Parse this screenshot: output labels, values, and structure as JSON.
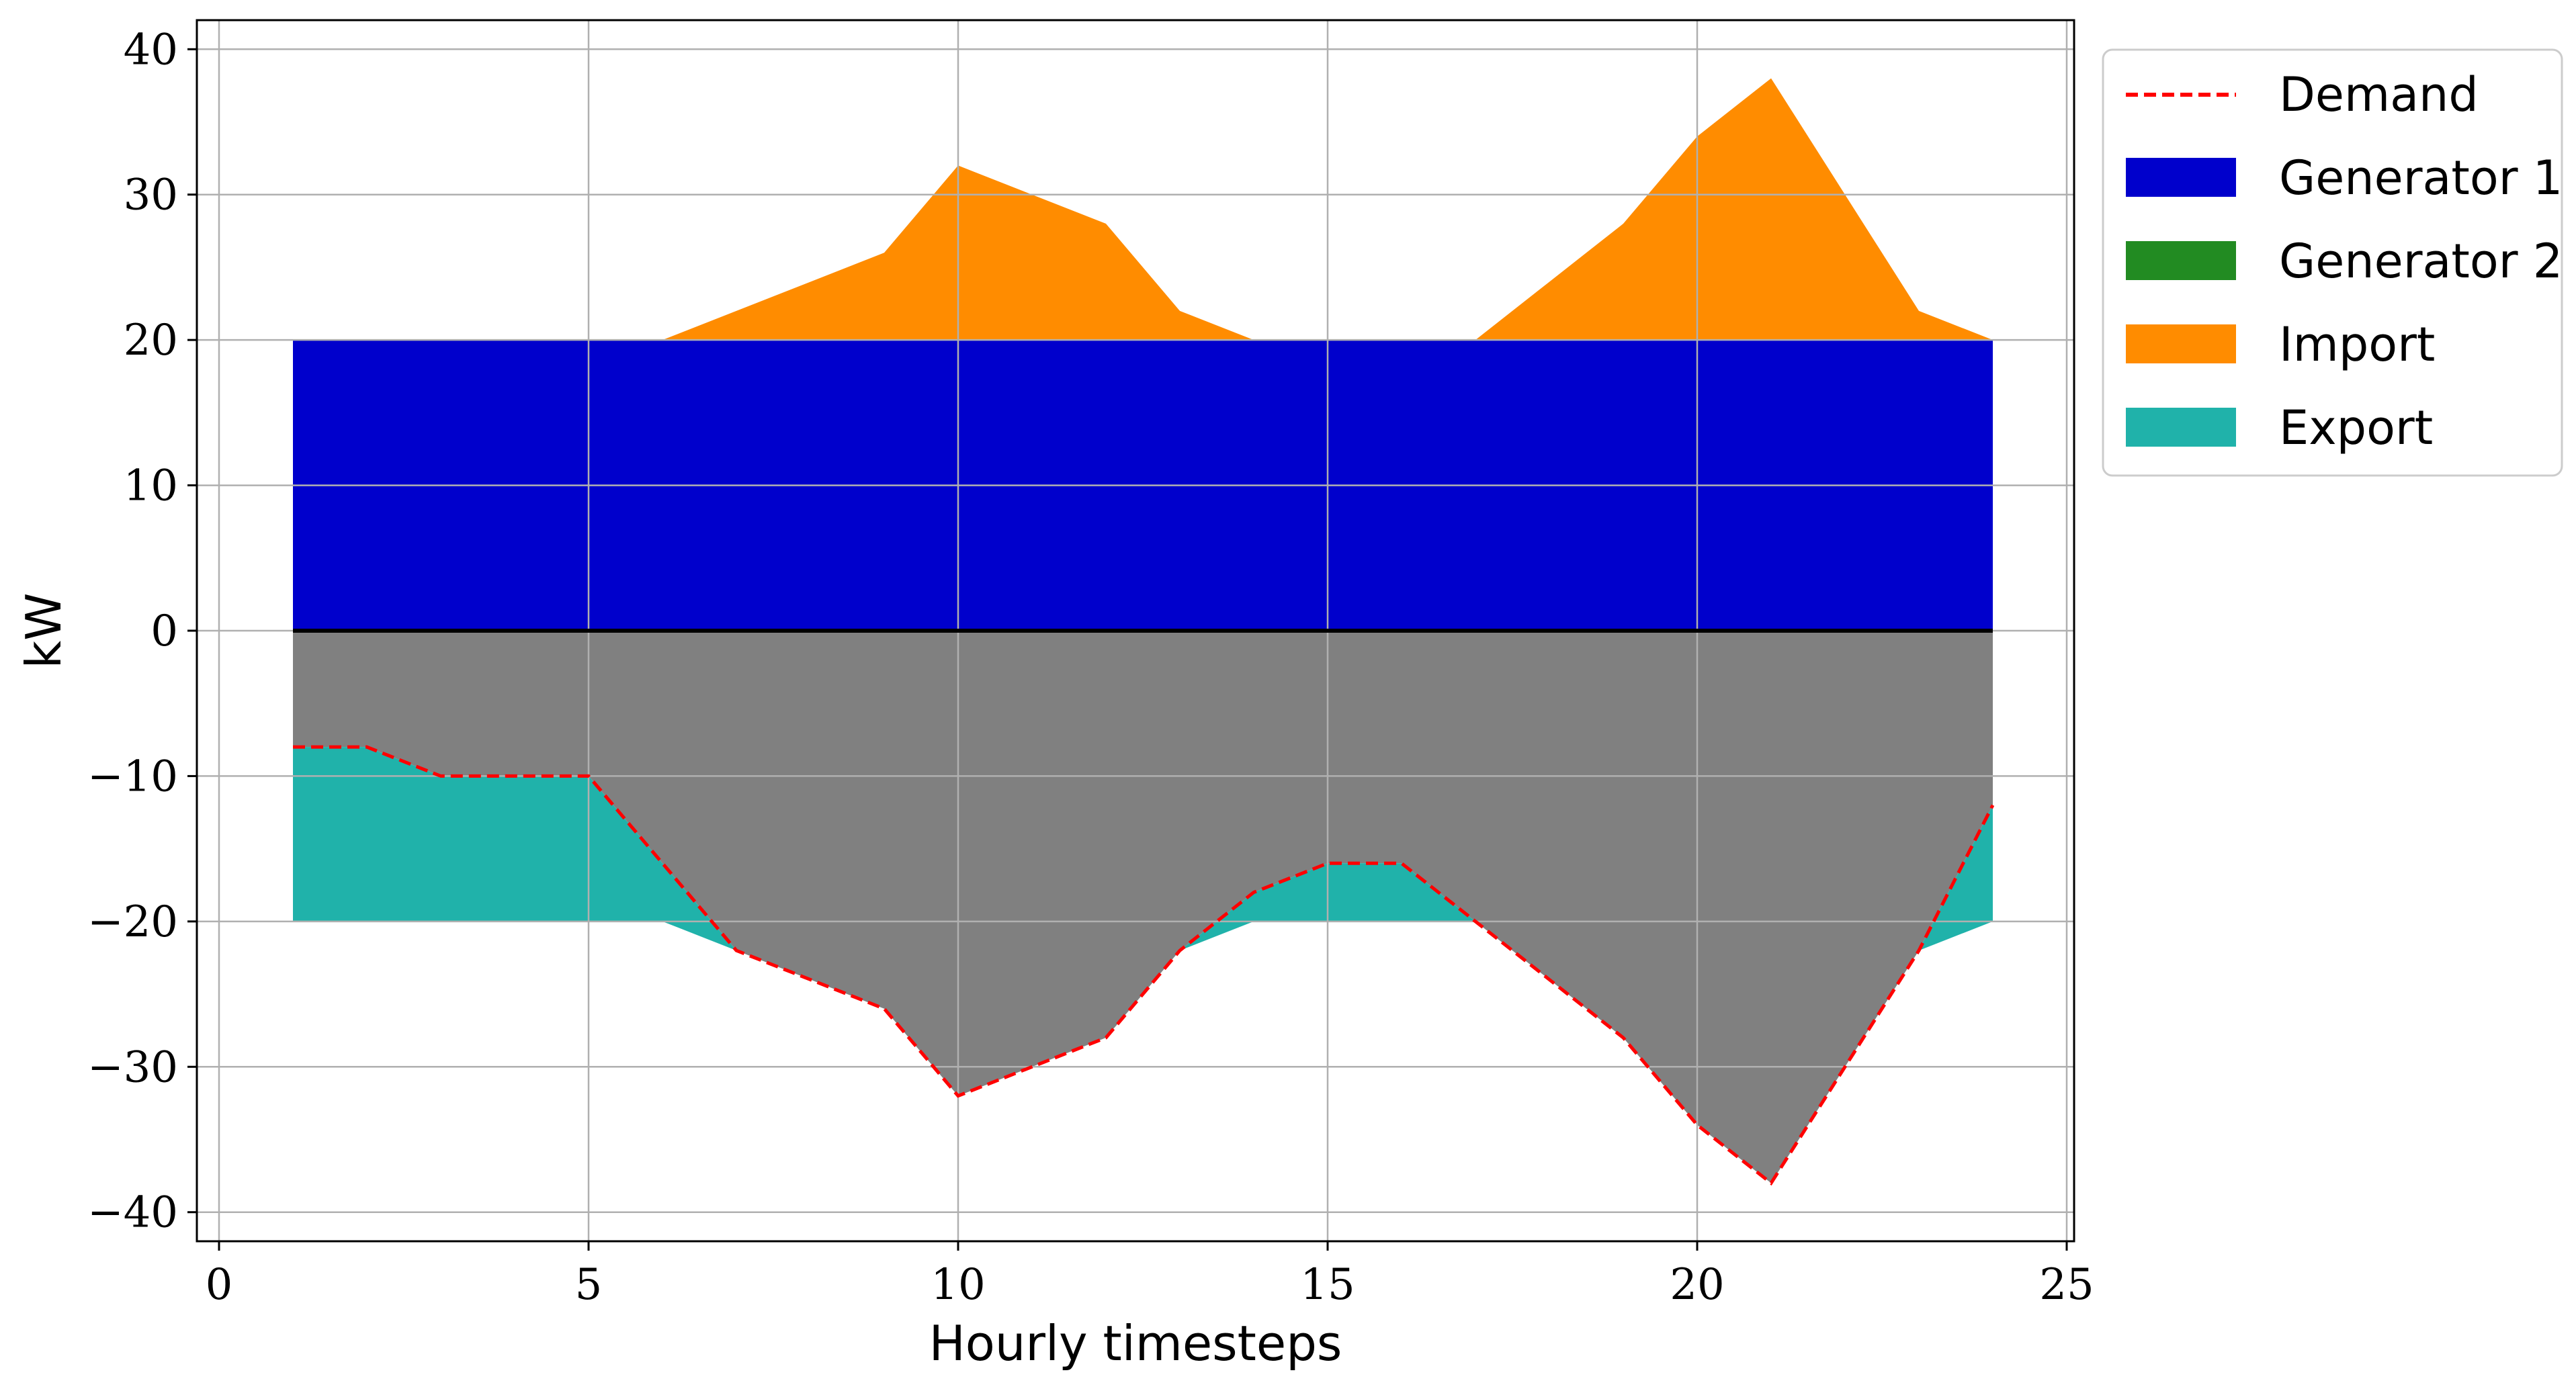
{
  "chart_data": {
    "type": "area",
    "title": "",
    "xlabel": "Hourly timesteps",
    "ylabel": "kW",
    "xlim": [
      -0.3,
      25.1
    ],
    "ylim": [
      -42,
      42
    ],
    "x_ticks": [
      0,
      5,
      10,
      15,
      20,
      25
    ],
    "y_ticks": [
      -40,
      -30,
      -20,
      -10,
      0,
      10,
      20,
      30,
      40
    ],
    "x_tick_labels": [
      "0",
      "5",
      "10",
      "15",
      "20",
      "25"
    ],
    "y_tick_labels": [
      "−40",
      "−30",
      "−20",
      "−10",
      "0",
      "10",
      "20",
      "30",
      "40"
    ],
    "grid": true,
    "legend_position": "outside-right-top",
    "x": [
      1,
      2,
      3,
      4,
      5,
      6,
      7,
      8,
      9,
      10,
      11,
      12,
      13,
      14,
      15,
      16,
      17,
      18,
      19,
      20,
      21,
      22,
      23,
      24
    ],
    "series": [
      {
        "name": "Demand",
        "kind": "line",
        "style": "dashed",
        "color": "#ff0000",
        "values": [
          -8,
          -8,
          -10,
          -10,
          -10,
          -16,
          -22,
          -24,
          -26,
          -32,
          -30,
          -28,
          -22,
          -18,
          -16,
          -16,
          -20,
          -24,
          -28,
          -34,
          -38,
          -30,
          -22,
          -12
        ]
      },
      {
        "name": "Generator 1",
        "kind": "area",
        "color": "#0000cc",
        "values": [
          20,
          20,
          20,
          20,
          20,
          20,
          20,
          20,
          20,
          20,
          20,
          20,
          20,
          20,
          20,
          20,
          20,
          20,
          20,
          20,
          20,
          20,
          20,
          20
        ]
      },
      {
        "name": "Generator 2",
        "kind": "area",
        "color": "#228b22",
        "values": [
          0,
          0,
          0,
          0,
          0,
          0,
          0,
          0,
          0,
          0,
          0,
          0,
          0,
          0,
          0,
          0,
          0,
          0,
          0,
          0,
          0,
          0,
          0,
          0
        ]
      },
      {
        "name": "Import",
        "kind": "area",
        "color": "#ff8c00",
        "values": [
          0,
          0,
          0,
          0,
          0,
          0,
          2,
          4,
          6,
          12,
          10,
          8,
          2,
          0,
          0,
          0,
          0,
          4,
          8,
          14,
          18,
          10,
          2,
          0
        ]
      },
      {
        "name": "Export",
        "kind": "area",
        "color": "#20b2aa",
        "values": [
          12,
          12,
          10,
          10,
          10,
          4,
          0,
          0,
          0,
          0,
          0,
          0,
          0,
          2,
          4,
          4,
          0,
          0,
          0,
          0,
          0,
          0,
          0,
          8
        ]
      }
    ],
    "demand_fill_color": "#808080",
    "zero_line_color": "#000000"
  }
}
